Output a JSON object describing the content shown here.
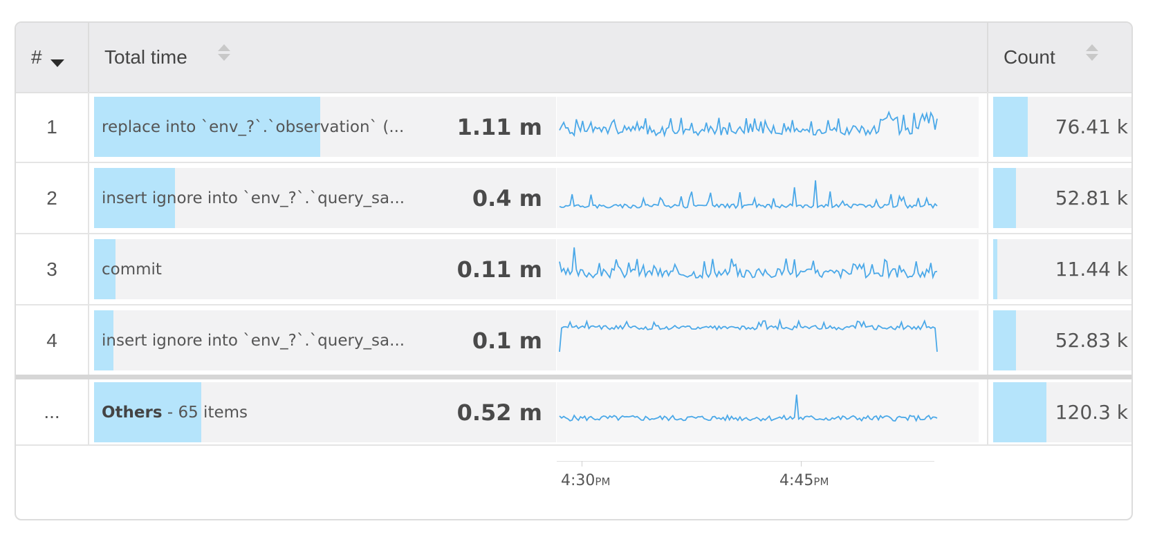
{
  "header": {
    "num_label": "#",
    "total_label": "Total time",
    "count_label": "Count"
  },
  "rows": [
    {
      "num": "1",
      "query": "replace into `env_?`.`observation` (...",
      "time": "1.11 m",
      "time_fraction": 0.49,
      "count": "76.41 k",
      "count_fraction": 0.24
    },
    {
      "num": "2",
      "query": "insert ignore into `env_?`.`query_sa...",
      "time": "0.4 m",
      "time_fraction": 0.175,
      "count": "52.81 k",
      "count_fraction": 0.16
    },
    {
      "num": "3",
      "query": "commit",
      "time": "0.11 m",
      "time_fraction": 0.047,
      "count": "11.44 k",
      "count_fraction": 0.03
    },
    {
      "num": "4",
      "query": "insert ignore into `env_?`.`query_sa...",
      "time": "0.1 m",
      "time_fraction": 0.042,
      "count": "52.83 k",
      "count_fraction": 0.16
    }
  ],
  "others": {
    "num": "...",
    "label_bold": "Others",
    "label_rest": " - 65 items",
    "time": "0.52 m",
    "time_fraction": 0.232,
    "count": "120.3 k",
    "count_fraction": 0.37
  },
  "axis": {
    "ticks": [
      {
        "time": "4:30",
        "suffix": "PM"
      },
      {
        "time": "4:45",
        "suffix": "PM"
      }
    ]
  },
  "colors": {
    "fill": "#b5e4fb",
    "sparkline": "#4aa8e8"
  }
}
